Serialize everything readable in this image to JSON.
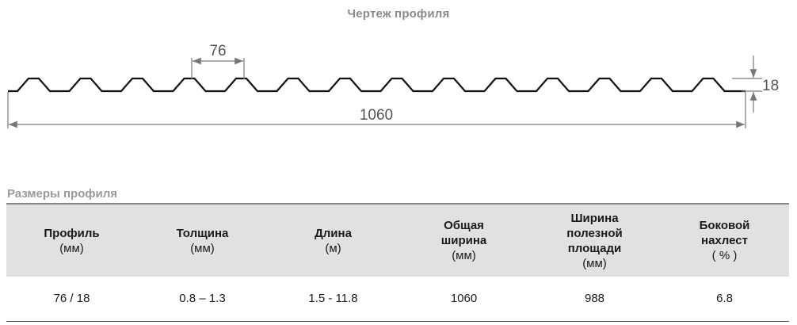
{
  "drawing": {
    "title": "Чертеж профиля",
    "pitch_label": "76",
    "height_label": "18",
    "total_width_label": "1060",
    "wave_count": 14
  },
  "table": {
    "caption": "Размеры профиля",
    "columns": [
      {
        "title": "Профиль",
        "unit": "(мм)"
      },
      {
        "title": "Толщина",
        "unit": "(мм)"
      },
      {
        "title": "Длина",
        "unit": "(м)"
      },
      {
        "title": "Общая ширина",
        "unit": "(мм)"
      },
      {
        "title": "Ширина полезной площади",
        "unit": "(мм)"
      },
      {
        "title": "Боковой нахлест",
        "unit": "( % )"
      }
    ],
    "row": [
      "76 / 18",
      "0.8 – 1.3",
      "1.5 - 11.8",
      "1060",
      "988",
      "6.8"
    ]
  },
  "colors": {
    "profile_line": "#111111",
    "dimension_line": "#777777",
    "header_background": "#e1e1e1"
  }
}
